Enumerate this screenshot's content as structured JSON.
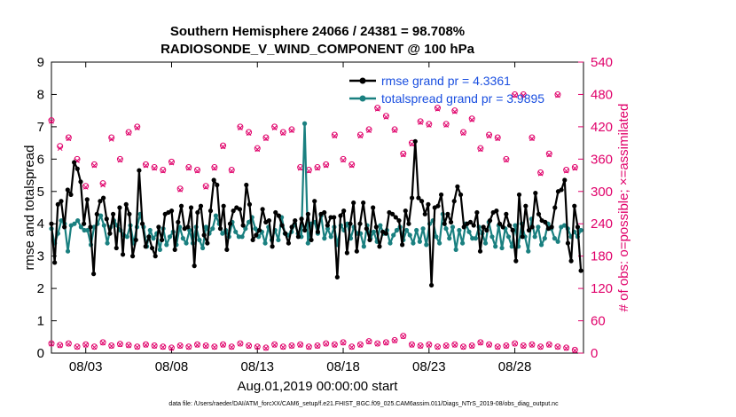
{
  "colors": {
    "rmse": "#000000",
    "spread": "#1a8080",
    "obs": "#e0006a",
    "legend_text": "#1a4fe0",
    "axis": "#000000"
  },
  "chart_data": {
    "type": "line",
    "title": "Southern Hemisphere 24066 / 24381 = 98.708%",
    "subtitle": "RADIOSONDE_V_WIND_COMPONENT @ 100 hPa",
    "xlabel": "Aug.01,2019 00:00:00 start",
    "ylabel": "rmse and totalspread",
    "y2label": "# of obs: o=possible; ×=assimilated",
    "footnote": "data file: /Users/raeder/DAI/ATM_forcXX/CAM6_setup/f.e21.FHIST_BGC.f09_025.CAM6assim.011/Diags_NTrS_2019-08/obs_diag_output.nc",
    "xlim": [
      1,
      32
    ],
    "ylim": [
      0,
      9
    ],
    "y2lim": [
      0,
      540
    ],
    "xticks": [
      3,
      8,
      13,
      18,
      23,
      28
    ],
    "xtick_labels": [
      "08/03",
      "08/08",
      "08/13",
      "08/18",
      "08/23",
      "08/28"
    ],
    "yticks": [
      0,
      1,
      2,
      3,
      4,
      5,
      6,
      7,
      8,
      9
    ],
    "ytick_labels": [
      "0",
      "1",
      "2",
      "3",
      "4",
      "5",
      "6",
      "7",
      "8",
      "9"
    ],
    "y2ticks": [
      0,
      60,
      120,
      180,
      240,
      300,
      360,
      420,
      480,
      540
    ],
    "y2tick_labels": [
      "0",
      "60",
      "120",
      "180",
      "240",
      "300",
      "360",
      "420",
      "480",
      "540"
    ],
    "legend": [
      {
        "name": "rmse grand pr = 4.3361",
        "series": "rmse"
      },
      {
        "name": "totalspread grand pr = 3.9895",
        "series": "spread"
      }
    ],
    "legend_position": "top-right",
    "series": [
      {
        "name": "rmse",
        "values": [
          4.0,
          2.8,
          4.6,
          4.7,
          3.9,
          5.05,
          4.9,
          5.9,
          5.7,
          5.3,
          4.0,
          4.75,
          3.9,
          2.45,
          4.3,
          4.7,
          4.8,
          4.15,
          3.7,
          4.3,
          3.25,
          4.5,
          3.05,
          4.6,
          4.3,
          3.0,
          3.5,
          5.65,
          4.0,
          3.3,
          3.6,
          3.25,
          3.0,
          3.9,
          3.5,
          4.3,
          4.35,
          4.4,
          3.2,
          4.05,
          4.55,
          3.85,
          3.9,
          4.5,
          2.7,
          4.35,
          4.55,
          3.65,
          3.4,
          4.4,
          5.35,
          5.2,
          3.85,
          4.55,
          3.2,
          4.0,
          4.4,
          4.5,
          4.45,
          3.95,
          5.2,
          4.6,
          3.5,
          3.65,
          3.8,
          4.45,
          4.05,
          4.1,
          3.3,
          4.35,
          4.25,
          3.95,
          3.7,
          3.4,
          3.9,
          4.1,
          3.6,
          4.15,
          3.8,
          4.3,
          3.5,
          4.7,
          3.75,
          4.3,
          4.35,
          3.95,
          4.2,
          4.2,
          2.35,
          4.25,
          4.4,
          3.1,
          4.0,
          4.65,
          3.15,
          4.0,
          4.65,
          3.85,
          3.5,
          4.5,
          3.9,
          3.3,
          3.75,
          3.7,
          4.35,
          4.3,
          4.2,
          4.1,
          3.35,
          4.4,
          4.0,
          4.8,
          6.55,
          4.8,
          4.7,
          4.3,
          4.6,
          2.1,
          4.5,
          4.55,
          4.9,
          4.0,
          4.3,
          4.05,
          4.7,
          5.15,
          4.9,
          3.9,
          4.0,
          4.05,
          3.95,
          4.35,
          3.15,
          3.9,
          3.8,
          4.1,
          4.35,
          4.4,
          4.0,
          3.9,
          4.3,
          3.95,
          3.8,
          2.85,
          4.9,
          3.6,
          4.55,
          3.8,
          3.9,
          4.95,
          4.3,
          4.1,
          4.05,
          3.85,
          3.9,
          4.5,
          5.0,
          5.05,
          5.35,
          3.4,
          2.85,
          4.55,
          3.9,
          2.55
        ]
      },
      {
        "name": "totalspread",
        "values": [
          3.85,
          3.4,
          3.7,
          4.1,
          4.0,
          3.15,
          3.95,
          4.0,
          4.1,
          3.9,
          3.8,
          3.8,
          3.35,
          3.9,
          4.0,
          4.25,
          3.95,
          3.4,
          3.9,
          4.1,
          3.95,
          3.8,
          3.65,
          3.6,
          3.95,
          3.4,
          3.9,
          4.3,
          3.9,
          3.3,
          3.8,
          3.55,
          3.7,
          3.2,
          3.85,
          3.35,
          3.6,
          3.75,
          3.35,
          3.9,
          3.55,
          3.4,
          3.8,
          3.4,
          3.9,
          3.5,
          3.25,
          3.9,
          3.7,
          3.85,
          4.25,
          4.0,
          3.7,
          3.8,
          3.6,
          4.05,
          3.75,
          3.6,
          3.6,
          3.85,
          4.05,
          4.2,
          3.85,
          3.6,
          3.75,
          3.4,
          3.9,
          3.5,
          3.8,
          3.5,
          4.2,
          3.7,
          3.65,
          3.75,
          4.0,
          3.7,
          3.6,
          7.1,
          3.4,
          4.0,
          4.05,
          3.7,
          4.25,
          3.55,
          3.85,
          3.6,
          3.9,
          3.35,
          3.95,
          3.8,
          4.0,
          3.55,
          3.9,
          3.7,
          3.7,
          3.3,
          3.95,
          3.55,
          3.75,
          3.45,
          3.95,
          3.7,
          3.8,
          3.4,
          3.65,
          3.8,
          3.9,
          3.5,
          3.8,
          3.65,
          3.4,
          3.8,
          3.45,
          3.85,
          3.35,
          4.0,
          4.1,
          3.6,
          3.4,
          4.3,
          3.85,
          3.55,
          3.9,
          3.2,
          3.8,
          3.4,
          4.0,
          3.75,
          3.55,
          3.55,
          3.9,
          3.7,
          3.4,
          4.05,
          3.6,
          3.3,
          3.95,
          3.25,
          3.85,
          3.6,
          3.3,
          3.95,
          3.3,
          4.0,
          3.6,
          3.15,
          4.15,
          3.6,
          3.9,
          3.35,
          3.55,
          4.0,
          3.85,
          3.55,
          3.45,
          3.9,
          3.95,
          3.85,
          3.6,
          3.75,
          3.6,
          3.8
        ]
      }
    ],
    "obs_high": {
      "name": "# obs (upper cluster)",
      "x": [
        1.0,
        1.5,
        2.0,
        2.5,
        3.0,
        3.5,
        4.0,
        4.5,
        5.0,
        5.5,
        6.0,
        6.5,
        7.0,
        7.5,
        8.0,
        8.5,
        9.0,
        9.5,
        10.0,
        10.5,
        11.0,
        11.5,
        12.0,
        12.5,
        13.0,
        13.5,
        14.0,
        14.5,
        15.0,
        15.5,
        16.0,
        16.5,
        17.0,
        17.5,
        18.0,
        18.5,
        19.0,
        19.5,
        20.0,
        20.5,
        21.0,
        21.5,
        22.0,
        22.5,
        23.0,
        23.5,
        24.0,
        24.5,
        25.0,
        25.5,
        26.0,
        26.5,
        27.0,
        27.5,
        28.0,
        28.5,
        29.0,
        29.5,
        30.0,
        30.5,
        31.0,
        31.5
      ],
      "possible": [
        432,
        384,
        400,
        360,
        310,
        350,
        315,
        400,
        360,
        410,
        420,
        350,
        345,
        340,
        355,
        305,
        345,
        340,
        310,
        345,
        385,
        340,
        420,
        410,
        380,
        400,
        420,
        410,
        415,
        345,
        340,
        345,
        350,
        405,
        360,
        350,
        405,
        415,
        455,
        440,
        415,
        370,
        390,
        430,
        425,
        455,
        425,
        450,
        410,
        435,
        380,
        405,
        400,
        360,
        480,
        480,
        400,
        335,
        370,
        480,
        340,
        345
      ],
      "assimilated": [
        430,
        380,
        398,
        357,
        308,
        348,
        312,
        397,
        358,
        408,
        418,
        348,
        343,
        338,
        353,
        303,
        343,
        338,
        308,
        343,
        383,
        338,
        418,
        408,
        378,
        398,
        418,
        408,
        413,
        343,
        338,
        343,
        348,
        403,
        358,
        348,
        403,
        413,
        453,
        438,
        413,
        368,
        388,
        428,
        423,
        453,
        423,
        448,
        408,
        433,
        378,
        403,
        398,
        358,
        478,
        478,
        398,
        333,
        368,
        478,
        338,
        343
      ]
    },
    "obs_low": {
      "name": "# obs (lower cluster)",
      "x": [
        1.0,
        1.5,
        2.0,
        2.5,
        3.0,
        3.5,
        4.0,
        4.5,
        5.0,
        5.5,
        6.0,
        6.5,
        7.0,
        7.5,
        8.0,
        8.5,
        9.0,
        9.5,
        10.0,
        10.5,
        11.0,
        11.5,
        12.0,
        12.5,
        13.0,
        13.5,
        14.0,
        14.5,
        15.0,
        15.5,
        16.0,
        16.5,
        17.0,
        17.5,
        18.0,
        18.5,
        19.0,
        19.5,
        20.0,
        20.5,
        21.0,
        21.5,
        22.0,
        22.5,
        23.0,
        23.5,
        24.0,
        24.5,
        25.0,
        25.5,
        26.0,
        26.5,
        27.0,
        27.5,
        28.0,
        28.5,
        29.0,
        29.5,
        30.0,
        30.5,
        31.0,
        31.5
      ],
      "possible": [
        18,
        15,
        18,
        12,
        16,
        12,
        20,
        14,
        17,
        15,
        12,
        16,
        14,
        12,
        10,
        14,
        12,
        16,
        14,
        12,
        16,
        12,
        18,
        14,
        12,
        10,
        16,
        12,
        14,
        16,
        12,
        14,
        18,
        16,
        20,
        12,
        16,
        22,
        18,
        20,
        24,
        32,
        16,
        14,
        16,
        12,
        14,
        16,
        12,
        14,
        20,
        16,
        12,
        14,
        18,
        14,
        16,
        12,
        16,
        12,
        10,
        6
      ],
      "assimilated": [
        17,
        14,
        17,
        11,
        15,
        11,
        19,
        13,
        16,
        14,
        11,
        15,
        13,
        11,
        9,
        13,
        11,
        15,
        13,
        11,
        15,
        11,
        17,
        13,
        11,
        9,
        15,
        11,
        13,
        15,
        11,
        13,
        17,
        15,
        19,
        11,
        15,
        21,
        17,
        19,
        23,
        31,
        15,
        13,
        15,
        11,
        13,
        15,
        11,
        13,
        19,
        15,
        11,
        13,
        17,
        13,
        15,
        11,
        15,
        11,
        9,
        5
      ]
    }
  }
}
